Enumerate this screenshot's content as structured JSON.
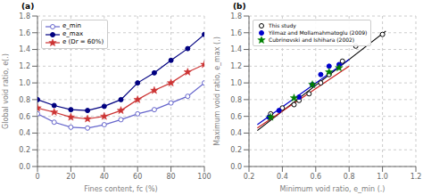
{
  "chart_data": [
    {
      "type": "line",
      "title": "(a)",
      "xlabel": "Fines content, fc (%)",
      "ylabel": "Global void ratio, e(.)",
      "x": [
        0,
        10,
        20,
        30,
        40,
        50,
        60,
        70,
        80,
        90,
        100
      ],
      "series": [
        {
          "name": "e_min",
          "type": "line",
          "color": "#6666cc",
          "marker": "circle_open",
          "values": [
            0.63,
            0.53,
            0.47,
            0.46,
            0.5,
            0.56,
            0.63,
            0.68,
            0.76,
            0.84,
            1.0
          ]
        },
        {
          "name": "e_max",
          "type": "line",
          "color": "#000080",
          "marker": "circle",
          "values": [
            0.8,
            0.73,
            0.68,
            0.67,
            0.72,
            0.8,
            1.0,
            1.12,
            1.27,
            1.41,
            1.58
          ]
        },
        {
          "name": "e (Dr = 60%)",
          "type": "line",
          "color": "#cc3333",
          "marker": "star",
          "values": [
            0.7,
            0.65,
            0.59,
            0.57,
            0.6,
            0.67,
            0.8,
            0.91,
            1.0,
            1.13,
            1.22
          ]
        }
      ],
      "xlim": [
        0,
        100
      ],
      "xticks": [
        0,
        20,
        40,
        60,
        80,
        100
      ],
      "ylim": [
        0,
        1.8
      ],
      "yticks": [
        {
          "value": 0,
          "label": "0.0"
        },
        0.2,
        0.4,
        0.6,
        0.8,
        {
          "value": 1.0,
          "label": "1.0"
        },
        1.2,
        1.4,
        1.6,
        1.8
      ],
      "grid": true,
      "legend": "upper left"
    },
    {
      "type": "scatter",
      "title": "(b)",
      "xlabel": "Minimum void ratio, e_min (.)",
      "ylabel": "Maximum void ratio, e_max (.)",
      "series": [
        {
          "type": "line",
          "color": "#000000",
          "x": [
            0.25,
            1.02
          ],
          "values": [
            0.43,
            1.62
          ]
        },
        {
          "type": "line",
          "color": "#0000cc",
          "x": [
            0.25,
            0.8
          ],
          "values": [
            0.5,
            1.28
          ]
        },
        {
          "type": "line",
          "color": "#cc2222",
          "x": [
            0.25,
            0.8
          ],
          "values": [
            0.46,
            1.2
          ]
        },
        {
          "name": "This study",
          "type": "scatter",
          "color": "#000000",
          "marker": "circle_open",
          "x": [
            0.33,
            0.4,
            0.47,
            0.5,
            0.56,
            0.63,
            0.68,
            0.76,
            0.84,
            1.0
          ],
          "values": [
            0.63,
            0.7,
            0.74,
            0.79,
            0.87,
            1.0,
            1.1,
            1.26,
            1.44,
            1.58
          ]
        },
        {
          "name": "Yilmaz and Mollamahmatoglu (2009)",
          "type": "scatter",
          "color": "#0000cc",
          "marker": "circle",
          "x": [
            0.32,
            0.38,
            0.5,
            0.58,
            0.63,
            0.68,
            0.74
          ],
          "values": [
            0.59,
            0.67,
            0.83,
            0.98,
            1.1,
            1.2,
            1.22
          ]
        },
        {
          "name": "Cubrinovski and Ishihara (2002)",
          "type": "scatter",
          "color": "green",
          "marker": "star",
          "x": [
            0.33,
            0.47,
            0.58,
            0.68,
            0.74
          ],
          "values": [
            0.59,
            0.82,
            0.98,
            1.13,
            1.18
          ]
        }
      ],
      "xlim": [
        0.2,
        1.2
      ],
      "xticks": [
        0.2,
        0.4,
        0.6,
        0.8,
        {
          "value": 1.0,
          "label": "1.0"
        },
        1.2
      ],
      "ylim": [
        0,
        1.8
      ],
      "yticks": [
        {
          "value": 0,
          "label": "0.0"
        },
        0.2,
        0.4,
        0.6,
        0.8,
        {
          "value": 1.0,
          "label": "1.0"
        },
        1.2,
        1.4,
        1.6,
        1.8
      ],
      "grid": true,
      "legend": "upper left"
    }
  ]
}
